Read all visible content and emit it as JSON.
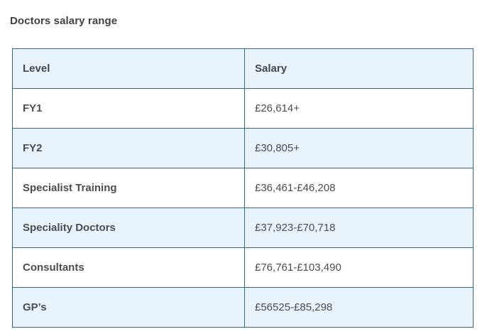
{
  "page": {
    "title": "Doctors salary range"
  },
  "table": {
    "columns": [
      "Level",
      "Salary"
    ],
    "rows": [
      {
        "level": "FY1",
        "salary": "£26,614+"
      },
      {
        "level": "FY2",
        "salary": "£30,805+"
      },
      {
        "level": "Specialist Training",
        "salary": "£36,461-£46,208"
      },
      {
        "level": "Speciality Doctors",
        "salary": "£37,923-£70,718"
      },
      {
        "level": "Consultants",
        "salary": "£76,761-£103,490"
      },
      {
        "level": "GP’s",
        "salary": "£56525-£85,298"
      }
    ]
  },
  "colors": {
    "row_alt_background": "#e9f3fb",
    "table_border": "#34678c",
    "title_text": "#414042",
    "cell_text": "#4d4d4d"
  }
}
